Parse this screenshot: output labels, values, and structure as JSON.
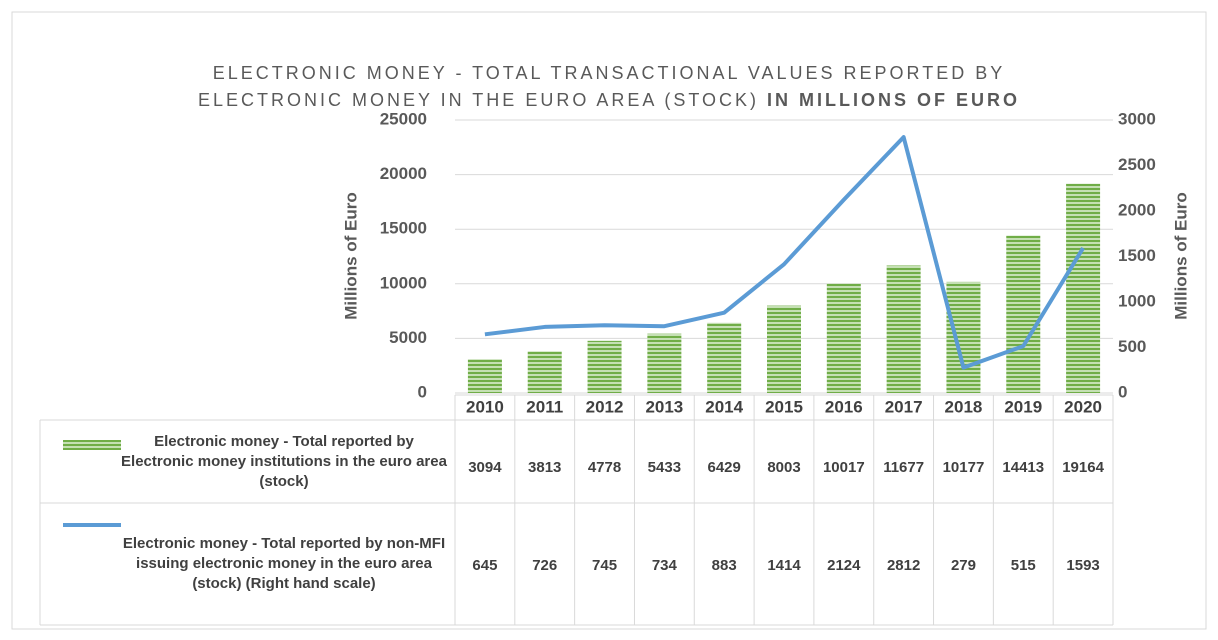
{
  "chart_data": {
    "type": "bar_line",
    "title": [
      "ELECTRONIC MONEY - TOTAL TRANSACTIONAL VALUES REPORTED BY",
      "ELECTRONIC MONEY IN THE EURO AREA (STOCK)"
    ],
    "title_emphasis": "IN MILLIONS OF EURO",
    "y_label": "Millions of Euro",
    "y2_label": "Millions of Euro",
    "categories": [
      "2010",
      "2011",
      "2012",
      "2013",
      "2014",
      "2015",
      "2016",
      "2017",
      "2018",
      "2019",
      "2020"
    ],
    "series": [
      {
        "name": "Electronic money - Total reported by Electronic money institutions in the euro area (stock)",
        "type": "bar",
        "color": "#70ad47",
        "values": [
          3094,
          3813,
          4778,
          5433,
          6429,
          8003,
          10017,
          11677,
          10177,
          14413,
          19164
        ]
      },
      {
        "name": "Electronic money - Total reported by non-MFI issuing electronic money in the euro area (stock) (Right hand scale)",
        "type": "line",
        "axis": "y2",
        "color": "#5b9bd5",
        "values": [
          645,
          726,
          745,
          734,
          883,
          1414,
          2124,
          2812,
          279,
          515,
          1593
        ]
      }
    ],
    "ylim": [
      0,
      25000
    ],
    "yticks": [
      0,
      5000,
      10000,
      15000,
      20000,
      25000
    ],
    "y2lim": [
      0,
      3000
    ],
    "y2ticks": [
      0,
      500,
      1000,
      1500,
      2000,
      2500,
      3000
    ],
    "grid": true
  }
}
